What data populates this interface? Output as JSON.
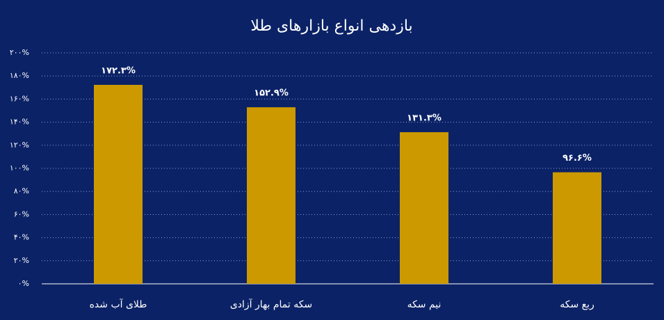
{
  "chart_data": {
    "type": "bar",
    "title": "بازدهی انواع بازارهای طلا",
    "categories": [
      "طلای آب شده",
      "سکه تمام بهار آزادی",
      "نیم سکه",
      "ربع سکه"
    ],
    "values": [
      172.3,
      152.9,
      131.3,
      96.6
    ],
    "value_labels": [
      "۱۷۲.۳%",
      "۱۵۲.۹%",
      "۱۳۱.۳%",
      "۹۶.۶%"
    ],
    "color": "#cc9900",
    "ylim": [
      0,
      200
    ],
    "yticks": [
      {
        "value": 0,
        "label": "۰%"
      },
      {
        "value": 20,
        "label": "۲۰%"
      },
      {
        "value": 40,
        "label": "۴۰%"
      },
      {
        "value": 60,
        "label": "۶۰%"
      },
      {
        "value": 80,
        "label": "۸۰%"
      },
      {
        "value": 100,
        "label": "۱۰۰%"
      },
      {
        "value": 120,
        "label": "۱۲۰%"
      },
      {
        "value": 140,
        "label": "۱۴۰%"
      },
      {
        "value": 160,
        "label": "۱۶۰%"
      },
      {
        "value": 180,
        "label": "۱۸۰%"
      },
      {
        "value": 200,
        "label": "۲۰۰%"
      }
    ],
    "grid": true
  }
}
